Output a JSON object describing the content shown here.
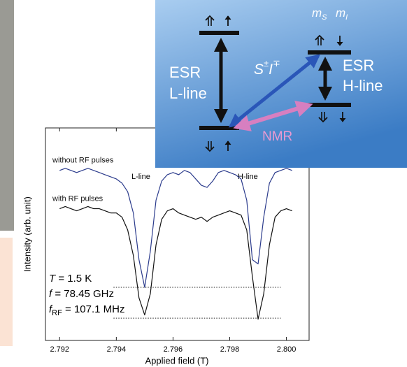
{
  "chart_data": {
    "type": "line",
    "x_label": "Applied field (T)",
    "y_label": "Intensity (arb. unit)",
    "xlim": [
      2.7915,
      2.8008
    ],
    "ylim": [
      0,
      1
    ],
    "xticks": [
      2.792,
      2.794,
      2.796,
      2.798,
      {
        "value": 2.8,
        "label": "2.800"
      }
    ],
    "x": [
      2.792,
      2.7922,
      2.7924,
      2.7926,
      2.7928,
      2.793,
      2.7932,
      2.7934,
      2.7936,
      2.7938,
      2.794,
      2.7942,
      2.7944,
      2.7946,
      2.7948,
      2.795,
      2.7952,
      2.7954,
      2.7956,
      2.7958,
      2.796,
      2.7962,
      2.7964,
      2.7966,
      2.7968,
      2.797,
      2.7972,
      2.7974,
      2.7976,
      2.7978,
      2.798,
      2.7982,
      2.7984,
      2.7986,
      2.7988,
      2.799,
      2.7992,
      2.7994,
      2.7996,
      2.7998,
      2.8,
      2.8002
    ],
    "series": [
      {
        "name": "without RF pulses",
        "color": "#2b3b8c",
        "values": [
          0.8,
          0.81,
          0.8,
          0.79,
          0.8,
          0.81,
          0.8,
          0.79,
          0.78,
          0.77,
          0.76,
          0.74,
          0.7,
          0.6,
          0.38,
          0.25,
          0.42,
          0.66,
          0.75,
          0.78,
          0.79,
          0.78,
          0.8,
          0.79,
          0.76,
          0.73,
          0.72,
          0.75,
          0.79,
          0.8,
          0.79,
          0.78,
          0.76,
          0.66,
          0.38,
          0.36,
          0.58,
          0.74,
          0.79,
          0.8,
          0.81,
          0.8
        ]
      },
      {
        "name": "with RF pulses",
        "color": "#111111",
        "values": [
          0.62,
          0.63,
          0.62,
          0.61,
          0.62,
          0.63,
          0.62,
          0.62,
          0.61,
          0.6,
          0.6,
          0.58,
          0.52,
          0.4,
          0.2,
          0.12,
          0.22,
          0.45,
          0.57,
          0.61,
          0.62,
          0.6,
          0.59,
          0.58,
          0.57,
          0.58,
          0.56,
          0.58,
          0.59,
          0.6,
          0.61,
          0.6,
          0.59,
          0.52,
          0.3,
          0.1,
          0.22,
          0.45,
          0.58,
          0.61,
          0.62,
          0.61
        ]
      }
    ],
    "reference_lines": [
      {
        "y": 0.25,
        "x_from": 2.7939,
        "x_to": 2.7998
      },
      {
        "y": 0.105,
        "x_from": 2.7939,
        "x_to": 2.7998
      }
    ],
    "annotations": [
      "L-line",
      "H-line"
    ],
    "conditions": [
      {
        "symbol": "T",
        "text": " = 1.5 K"
      },
      {
        "symbol": "f",
        "text": " = 78.45 GHz"
      },
      {
        "symbol": "f",
        "subscript": "RF",
        "text": " = 107.1 MHz"
      }
    ]
  },
  "inset": {
    "left_label": [
      "ESR",
      "L-line"
    ],
    "right_label": [
      "ESR",
      "H-line"
    ],
    "transition": {
      "op1": "S",
      "sup1": "±",
      "op2": "I",
      "sup2": "∓"
    },
    "nmr": "NMR",
    "quantum_numbers": [
      {
        "symbol": "m",
        "sub": "S"
      },
      {
        "symbol": "m",
        "sub": "I"
      }
    ]
  }
}
